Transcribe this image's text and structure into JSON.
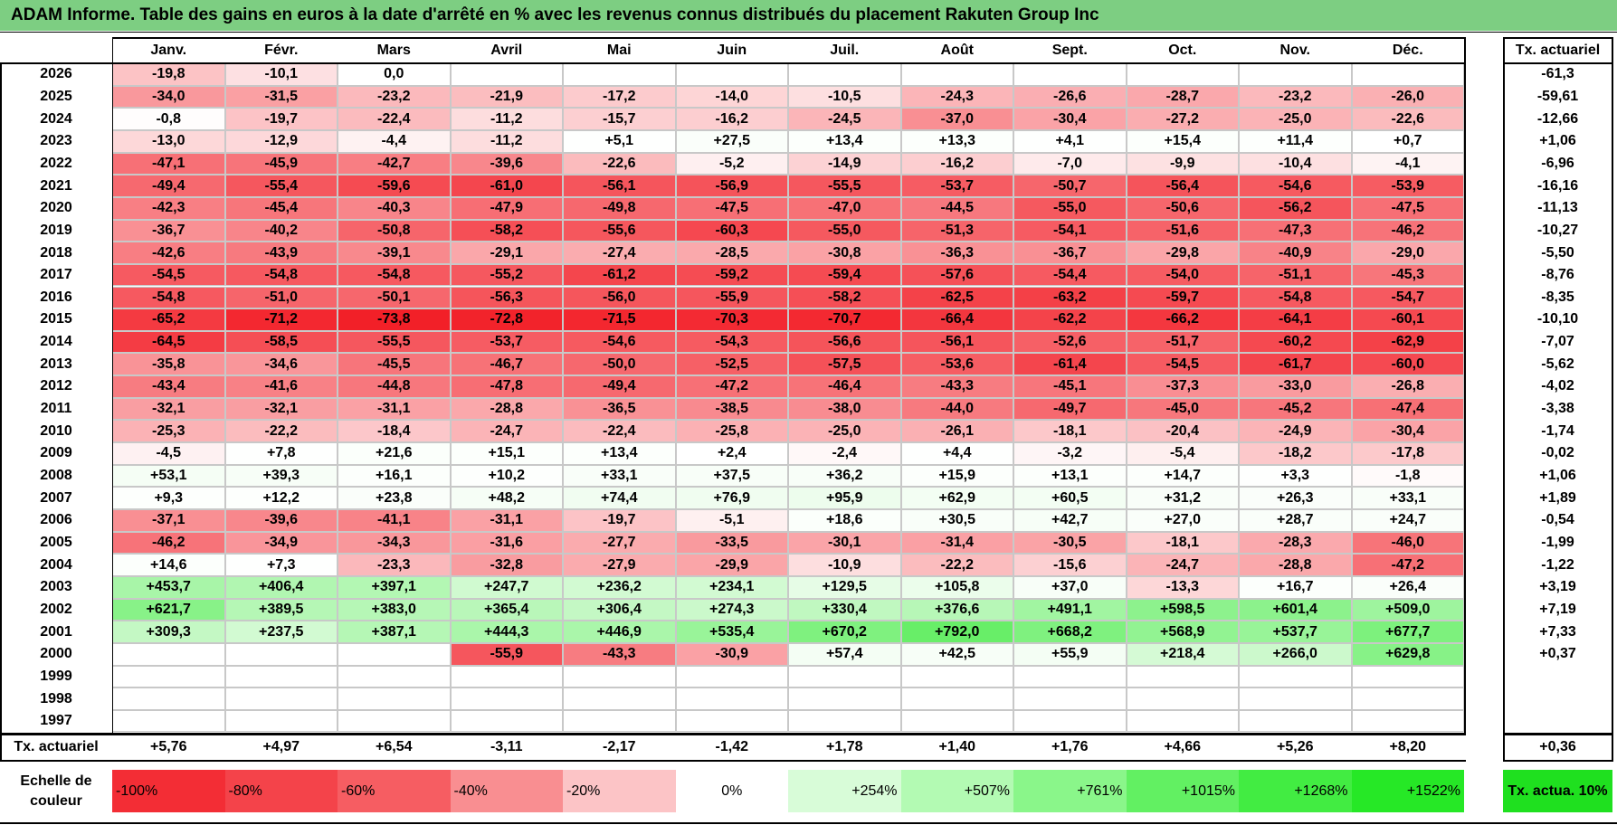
{
  "title": "ADAM Informe. Table des gains en euros à la date d'arrêté en % avec les revenus connus distribués du placement Rakuten Group Inc",
  "months": [
    "Janv.",
    "Févr.",
    "Mars",
    "Avril",
    "Mai",
    "Juin",
    "Juil.",
    "Août",
    "Sept.",
    "Oct.",
    "Nov.",
    "Déc."
  ],
  "tx_header": "Tx. actuariel",
  "rows": [
    {
      "year": "2026",
      "cells": [
        "-19,8",
        "-10,1",
        "0,0",
        "",
        "",
        "",
        "",
        "",
        "",
        "",
        "",
        ""
      ],
      "tx": "-61,3"
    },
    {
      "year": "2025",
      "cells": [
        "-34,0",
        "-31,5",
        "-23,2",
        "-21,9",
        "-17,2",
        "-14,0",
        "-10,5",
        "-24,3",
        "-26,6",
        "-28,7",
        "-23,2",
        "-26,0"
      ],
      "tx": "-59,61"
    },
    {
      "year": "2024",
      "cells": [
        "-0,8",
        "-19,7",
        "-22,4",
        "-11,2",
        "-15,7",
        "-16,2",
        "-24,5",
        "-37,0",
        "-30,4",
        "-27,2",
        "-25,0",
        "-22,6"
      ],
      "tx": "-12,66"
    },
    {
      "year": "2023",
      "cells": [
        "-13,0",
        "-12,9",
        "-4,4",
        "-11,2",
        "+5,1",
        "+27,5",
        "+13,4",
        "+13,3",
        "+4,1",
        "+15,4",
        "+11,4",
        "+0,7"
      ],
      "tx": "+1,06"
    },
    {
      "year": "2022",
      "cells": [
        "-47,1",
        "-45,9",
        "-42,7",
        "-39,6",
        "-22,6",
        "-5,2",
        "-14,9",
        "-16,2",
        "-7,0",
        "-9,9",
        "-10,4",
        "-4,1"
      ],
      "tx": "-6,96"
    },
    {
      "year": "2021",
      "cells": [
        "-49,4",
        "-55,4",
        "-59,6",
        "-61,0",
        "-56,1",
        "-56,9",
        "-55,5",
        "-53,7",
        "-50,7",
        "-56,4",
        "-54,6",
        "-53,9"
      ],
      "tx": "-16,16"
    },
    {
      "year": "2020",
      "cells": [
        "-42,3",
        "-45,4",
        "-40,3",
        "-47,9",
        "-49,8",
        "-47,5",
        "-47,0",
        "-44,5",
        "-55,0",
        "-50,6",
        "-56,2",
        "-47,5"
      ],
      "tx": "-11,13"
    },
    {
      "year": "2019",
      "cells": [
        "-36,7",
        "-40,2",
        "-50,8",
        "-58,2",
        "-55,6",
        "-60,3",
        "-55,0",
        "-51,3",
        "-54,1",
        "-51,6",
        "-47,3",
        "-46,2"
      ],
      "tx": "-10,27"
    },
    {
      "year": "2018",
      "cells": [
        "-42,6",
        "-43,9",
        "-39,1",
        "-29,1",
        "-27,4",
        "-28,5",
        "-30,8",
        "-36,3",
        "-36,7",
        "-29,8",
        "-40,9",
        "-29,0"
      ],
      "tx": "-5,50"
    },
    {
      "year": "2017",
      "cells": [
        "-54,5",
        "-54,8",
        "-54,8",
        "-55,2",
        "-61,2",
        "-59,2",
        "-59,4",
        "-57,6",
        "-54,4",
        "-54,0",
        "-51,1",
        "-45,3"
      ],
      "tx": "-8,76"
    },
    {
      "year": "2016",
      "cells": [
        "-54,8",
        "-51,0",
        "-50,1",
        "-56,3",
        "-56,0",
        "-55,9",
        "-58,2",
        "-62,5",
        "-63,2",
        "-59,7",
        "-54,8",
        "-54,7"
      ],
      "tx": "-8,35"
    },
    {
      "year": "2015",
      "cells": [
        "-65,2",
        "-71,2",
        "-73,8",
        "-72,8",
        "-71,5",
        "-70,3",
        "-70,7",
        "-66,4",
        "-62,2",
        "-66,2",
        "-64,1",
        "-60,1"
      ],
      "tx": "-10,10"
    },
    {
      "year": "2014",
      "cells": [
        "-64,5",
        "-58,5",
        "-55,5",
        "-53,7",
        "-54,6",
        "-54,3",
        "-56,6",
        "-56,1",
        "-52,6",
        "-51,7",
        "-60,2",
        "-62,9"
      ],
      "tx": "-7,07"
    },
    {
      "year": "2013",
      "cells": [
        "-35,8",
        "-34,6",
        "-45,5",
        "-46,7",
        "-50,0",
        "-52,5",
        "-57,5",
        "-53,6",
        "-61,4",
        "-54,5",
        "-61,7",
        "-60,0"
      ],
      "tx": "-5,62"
    },
    {
      "year": "2012",
      "cells": [
        "-43,4",
        "-41,6",
        "-44,8",
        "-47,8",
        "-49,4",
        "-47,2",
        "-46,4",
        "-43,3",
        "-45,1",
        "-37,3",
        "-33,0",
        "-26,8"
      ],
      "tx": "-4,02"
    },
    {
      "year": "2011",
      "cells": [
        "-32,1",
        "-32,1",
        "-31,1",
        "-28,8",
        "-36,5",
        "-38,5",
        "-38,0",
        "-44,0",
        "-49,7",
        "-45,0",
        "-45,2",
        "-47,4"
      ],
      "tx": "-3,38"
    },
    {
      "year": "2010",
      "cells": [
        "-25,3",
        "-22,2",
        "-18,4",
        "-24,7",
        "-22,4",
        "-25,8",
        "-25,0",
        "-26,1",
        "-18,1",
        "-20,4",
        "-24,9",
        "-30,4"
      ],
      "tx": "-1,74"
    },
    {
      "year": "2009",
      "cells": [
        "-4,5",
        "+7,8",
        "+21,6",
        "+15,1",
        "+13,4",
        "+2,4",
        "-2,4",
        "+4,4",
        "-3,2",
        "-5,4",
        "-18,2",
        "-17,8"
      ],
      "tx": "-0,02"
    },
    {
      "year": "2008",
      "cells": [
        "+53,1",
        "+39,3",
        "+16,1",
        "+10,2",
        "+33,1",
        "+37,5",
        "+36,2",
        "+15,9",
        "+13,1",
        "+14,7",
        "+3,3",
        "-1,8"
      ],
      "tx": "+1,06"
    },
    {
      "year": "2007",
      "cells": [
        "+9,3",
        "+12,2",
        "+23,8",
        "+48,2",
        "+74,4",
        "+76,9",
        "+95,9",
        "+62,9",
        "+60,5",
        "+31,2",
        "+26,3",
        "+33,1"
      ],
      "tx": "+1,89"
    },
    {
      "year": "2006",
      "cells": [
        "-37,1",
        "-39,6",
        "-41,1",
        "-31,1",
        "-19,7",
        "-5,1",
        "+18,6",
        "+30,5",
        "+42,7",
        "+27,0",
        "+28,7",
        "+24,7"
      ],
      "tx": "-0,54"
    },
    {
      "year": "2005",
      "cells": [
        "-46,2",
        "-34,9",
        "-34,3",
        "-31,6",
        "-27,7",
        "-33,5",
        "-30,1",
        "-31,4",
        "-30,5",
        "-18,1",
        "-28,3",
        "-46,0"
      ],
      "tx": "-1,99"
    },
    {
      "year": "2004",
      "cells": [
        "+14,6",
        "+7,3",
        "-23,3",
        "-32,8",
        "-27,9",
        "-29,9",
        "-10,9",
        "-22,2",
        "-15,6",
        "-24,7",
        "-28,8",
        "-47,2"
      ],
      "tx": "-1,22"
    },
    {
      "year": "2003",
      "cells": [
        "+453,7",
        "+406,4",
        "+397,1",
        "+247,7",
        "+236,2",
        "+234,1",
        "+129,5",
        "+105,8",
        "+37,0",
        "-13,3",
        "+16,7",
        "+26,4"
      ],
      "tx": "+3,19"
    },
    {
      "year": "2002",
      "cells": [
        "+621,7",
        "+389,5",
        "+383,0",
        "+365,4",
        "+306,4",
        "+274,3",
        "+330,4",
        "+376,6",
        "+491,1",
        "+598,5",
        "+601,4",
        "+509,0"
      ],
      "tx": "+7,19"
    },
    {
      "year": "2001",
      "cells": [
        "+309,3",
        "+237,5",
        "+387,1",
        "+444,3",
        "+446,9",
        "+535,4",
        "+670,2",
        "+792,0",
        "+668,2",
        "+568,9",
        "+537,7",
        "+677,7"
      ],
      "tx": "+7,33"
    },
    {
      "year": "2000",
      "cells": [
        "",
        "",
        "",
        "-55,9",
        "-43,3",
        "-30,9",
        "+57,4",
        "+42,5",
        "+55,9",
        "+218,4",
        "+266,0",
        "+629,8"
      ],
      "tx": "+0,37"
    },
    {
      "year": "1999",
      "cells": [
        "",
        "",
        "",
        "",
        "",
        "",
        "",
        "",
        "",
        "",
        "",
        ""
      ],
      "tx": ""
    },
    {
      "year": "1998",
      "cells": [
        "",
        "",
        "",
        "",
        "",
        "",
        "",
        "",
        "",
        "",
        "",
        ""
      ],
      "tx": ""
    },
    {
      "year": "1997",
      "cells": [
        "",
        "",
        "",
        "",
        "",
        "",
        "",
        "",
        "",
        "",
        "",
        ""
      ],
      "tx": ""
    }
  ],
  "tx_row": {
    "label": "Tx. actuariel",
    "values": [
      "+5,76",
      "+4,97",
      "+6,54",
      "-3,11",
      "-2,17",
      "-1,42",
      "+1,78",
      "+1,40",
      "+1,76",
      "+4,66",
      "+5,26",
      "+8,20"
    ],
    "total": "+0,36"
  },
  "scale": {
    "label": "Echelle de couleur",
    "items": [
      {
        "text": "-100%",
        "color": "#f32d35",
        "align": "left"
      },
      {
        "text": "-80%",
        "color": "#f4434a",
        "align": "left"
      },
      {
        "text": "-60%",
        "color": "#f65d62",
        "align": "left"
      },
      {
        "text": "-40%",
        "color": "#f98e91",
        "align": "left"
      },
      {
        "text": "-20%",
        "color": "#fcc4c6",
        "align": "left"
      },
      {
        "text": "0%",
        "color": "#ffffff",
        "align": "center"
      },
      {
        "text": "+254%",
        "color": "#d8fcd8",
        "align": "right"
      },
      {
        "text": "+507%",
        "color": "#b3fab3",
        "align": "right"
      },
      {
        "text": "+761%",
        "color": "#8af68a",
        "align": "right"
      },
      {
        "text": "+1015%",
        "color": "#62f062",
        "align": "right"
      },
      {
        "text": "+1268%",
        "color": "#42ec42",
        "align": "right"
      },
      {
        "text": "+1522%",
        "color": "#26e826",
        "align": "right"
      }
    ],
    "tx_swatch": {
      "text": "Tx. actua. 10%",
      "color": "#1fe01f"
    }
  }
}
